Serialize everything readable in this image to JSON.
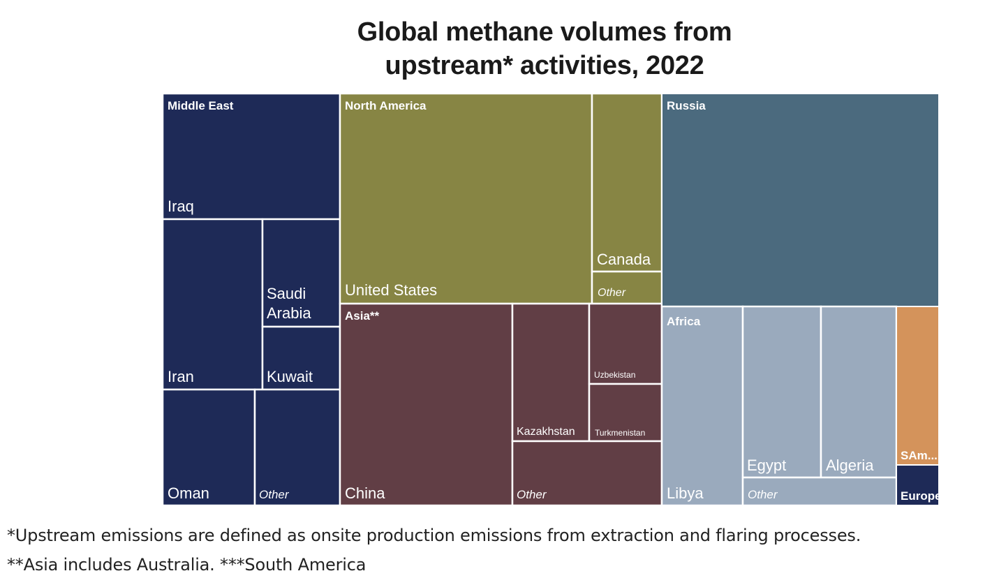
{
  "chart_data": {
    "type": "treemap",
    "title_lines": [
      "Global methane volumes from",
      "upstream* activities, 2022"
    ],
    "regions": [
      {
        "name": "Middle East",
        "color": "#1e2a57",
        "items": [
          {
            "label": "Iraq"
          },
          {
            "label": "Iran"
          },
          {
            "label": "Saudi Arabia",
            "lines": [
              "Saudi",
              "Arabia"
            ]
          },
          {
            "label": "Kuwait"
          },
          {
            "label": "Oman"
          },
          {
            "label": "Other"
          }
        ]
      },
      {
        "name": "North America",
        "color": "#878544",
        "items": [
          {
            "label": "United States"
          },
          {
            "label": "Canada"
          },
          {
            "label": "Other"
          }
        ]
      },
      {
        "name": "Asia**",
        "color": "#613e45",
        "items": [
          {
            "label": "China"
          },
          {
            "label": "Kazakhstan"
          },
          {
            "label": "Uzbekistan"
          },
          {
            "label": "Turkmenistan"
          },
          {
            "label": "Other"
          }
        ]
      },
      {
        "name": "Russia",
        "color": "#4b6a7e",
        "items": []
      },
      {
        "name": "Africa",
        "color": "#9aaabd",
        "items": [
          {
            "label": "Libya"
          },
          {
            "label": "Egypt"
          },
          {
            "label": "Algeria"
          },
          {
            "label": "Other"
          }
        ]
      },
      {
        "name": "SAm...",
        "color": "#d4935b",
        "items": []
      },
      {
        "name": "Europe",
        "color": "#1e2a57",
        "items": []
      }
    ]
  },
  "footnotes": [
    "*Upstream emissions are defined as onsite production emissions from extraction and flaring processes.",
    "**Asia includes Australia. ***South America"
  ]
}
